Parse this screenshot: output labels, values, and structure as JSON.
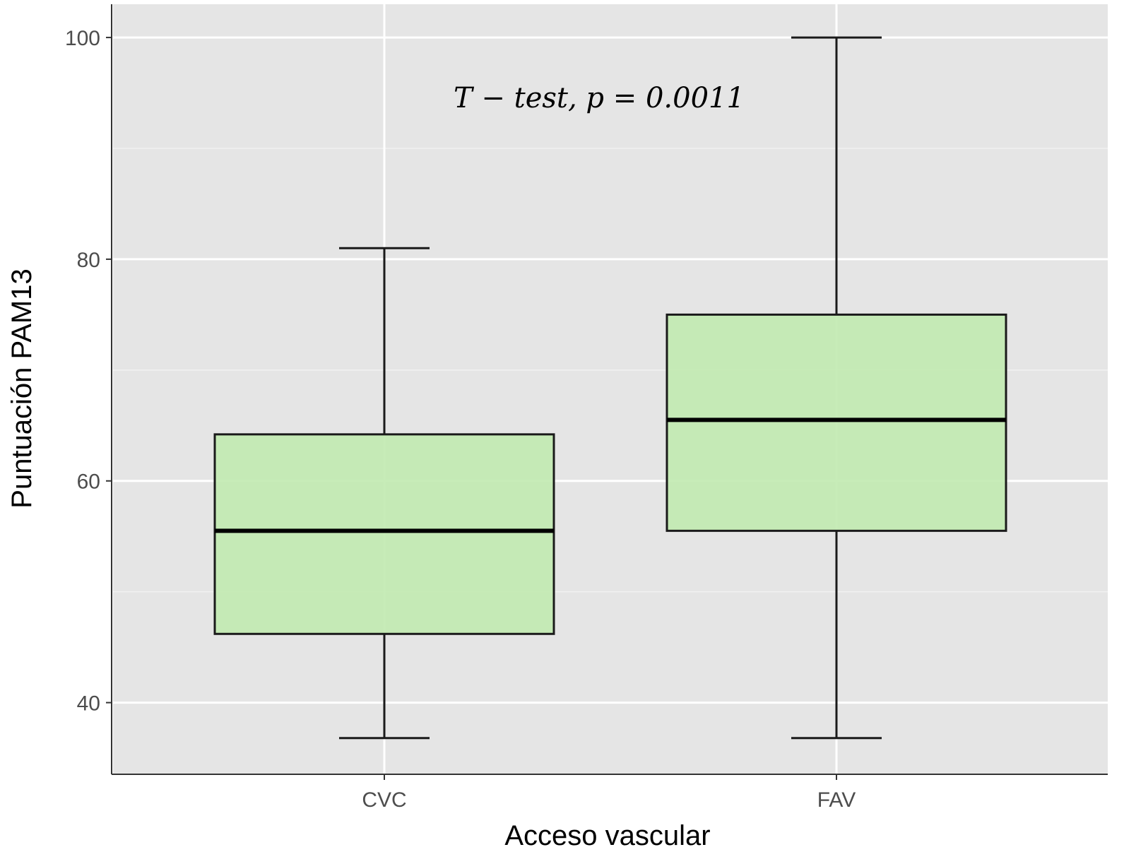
{
  "chart_data": {
    "type": "boxplot",
    "xlabel": "Acceso vascular",
    "ylabel": "Puntuación PAM13",
    "categories": [
      "CVC",
      "FAV"
    ],
    "boxes": [
      {
        "category": "CVC",
        "whisker_low": 36.8,
        "q1": 46.2,
        "median": 55.5,
        "q3": 64.2,
        "whisker_high": 81.0
      },
      {
        "category": "FAV",
        "whisker_low": 36.8,
        "q1": 55.5,
        "median": 65.5,
        "q3": 75.0,
        "whisker_high": 100.0
      }
    ],
    "ylim": [
      33.6,
      103.0
    ],
    "yticks": [
      40,
      60,
      80,
      100
    ],
    "ytick_labels": [
      "40",
      "60",
      "80",
      "100"
    ],
    "annotation": "T − test, p = 0.0011",
    "grid": true,
    "colors": {
      "panel_background": "#e5e5e5",
      "grid_major": "#ffffff",
      "grid_minor": "#f2f2f2",
      "box_fill": "#c1eab0",
      "box_stroke": "#1a1a1a"
    }
  }
}
